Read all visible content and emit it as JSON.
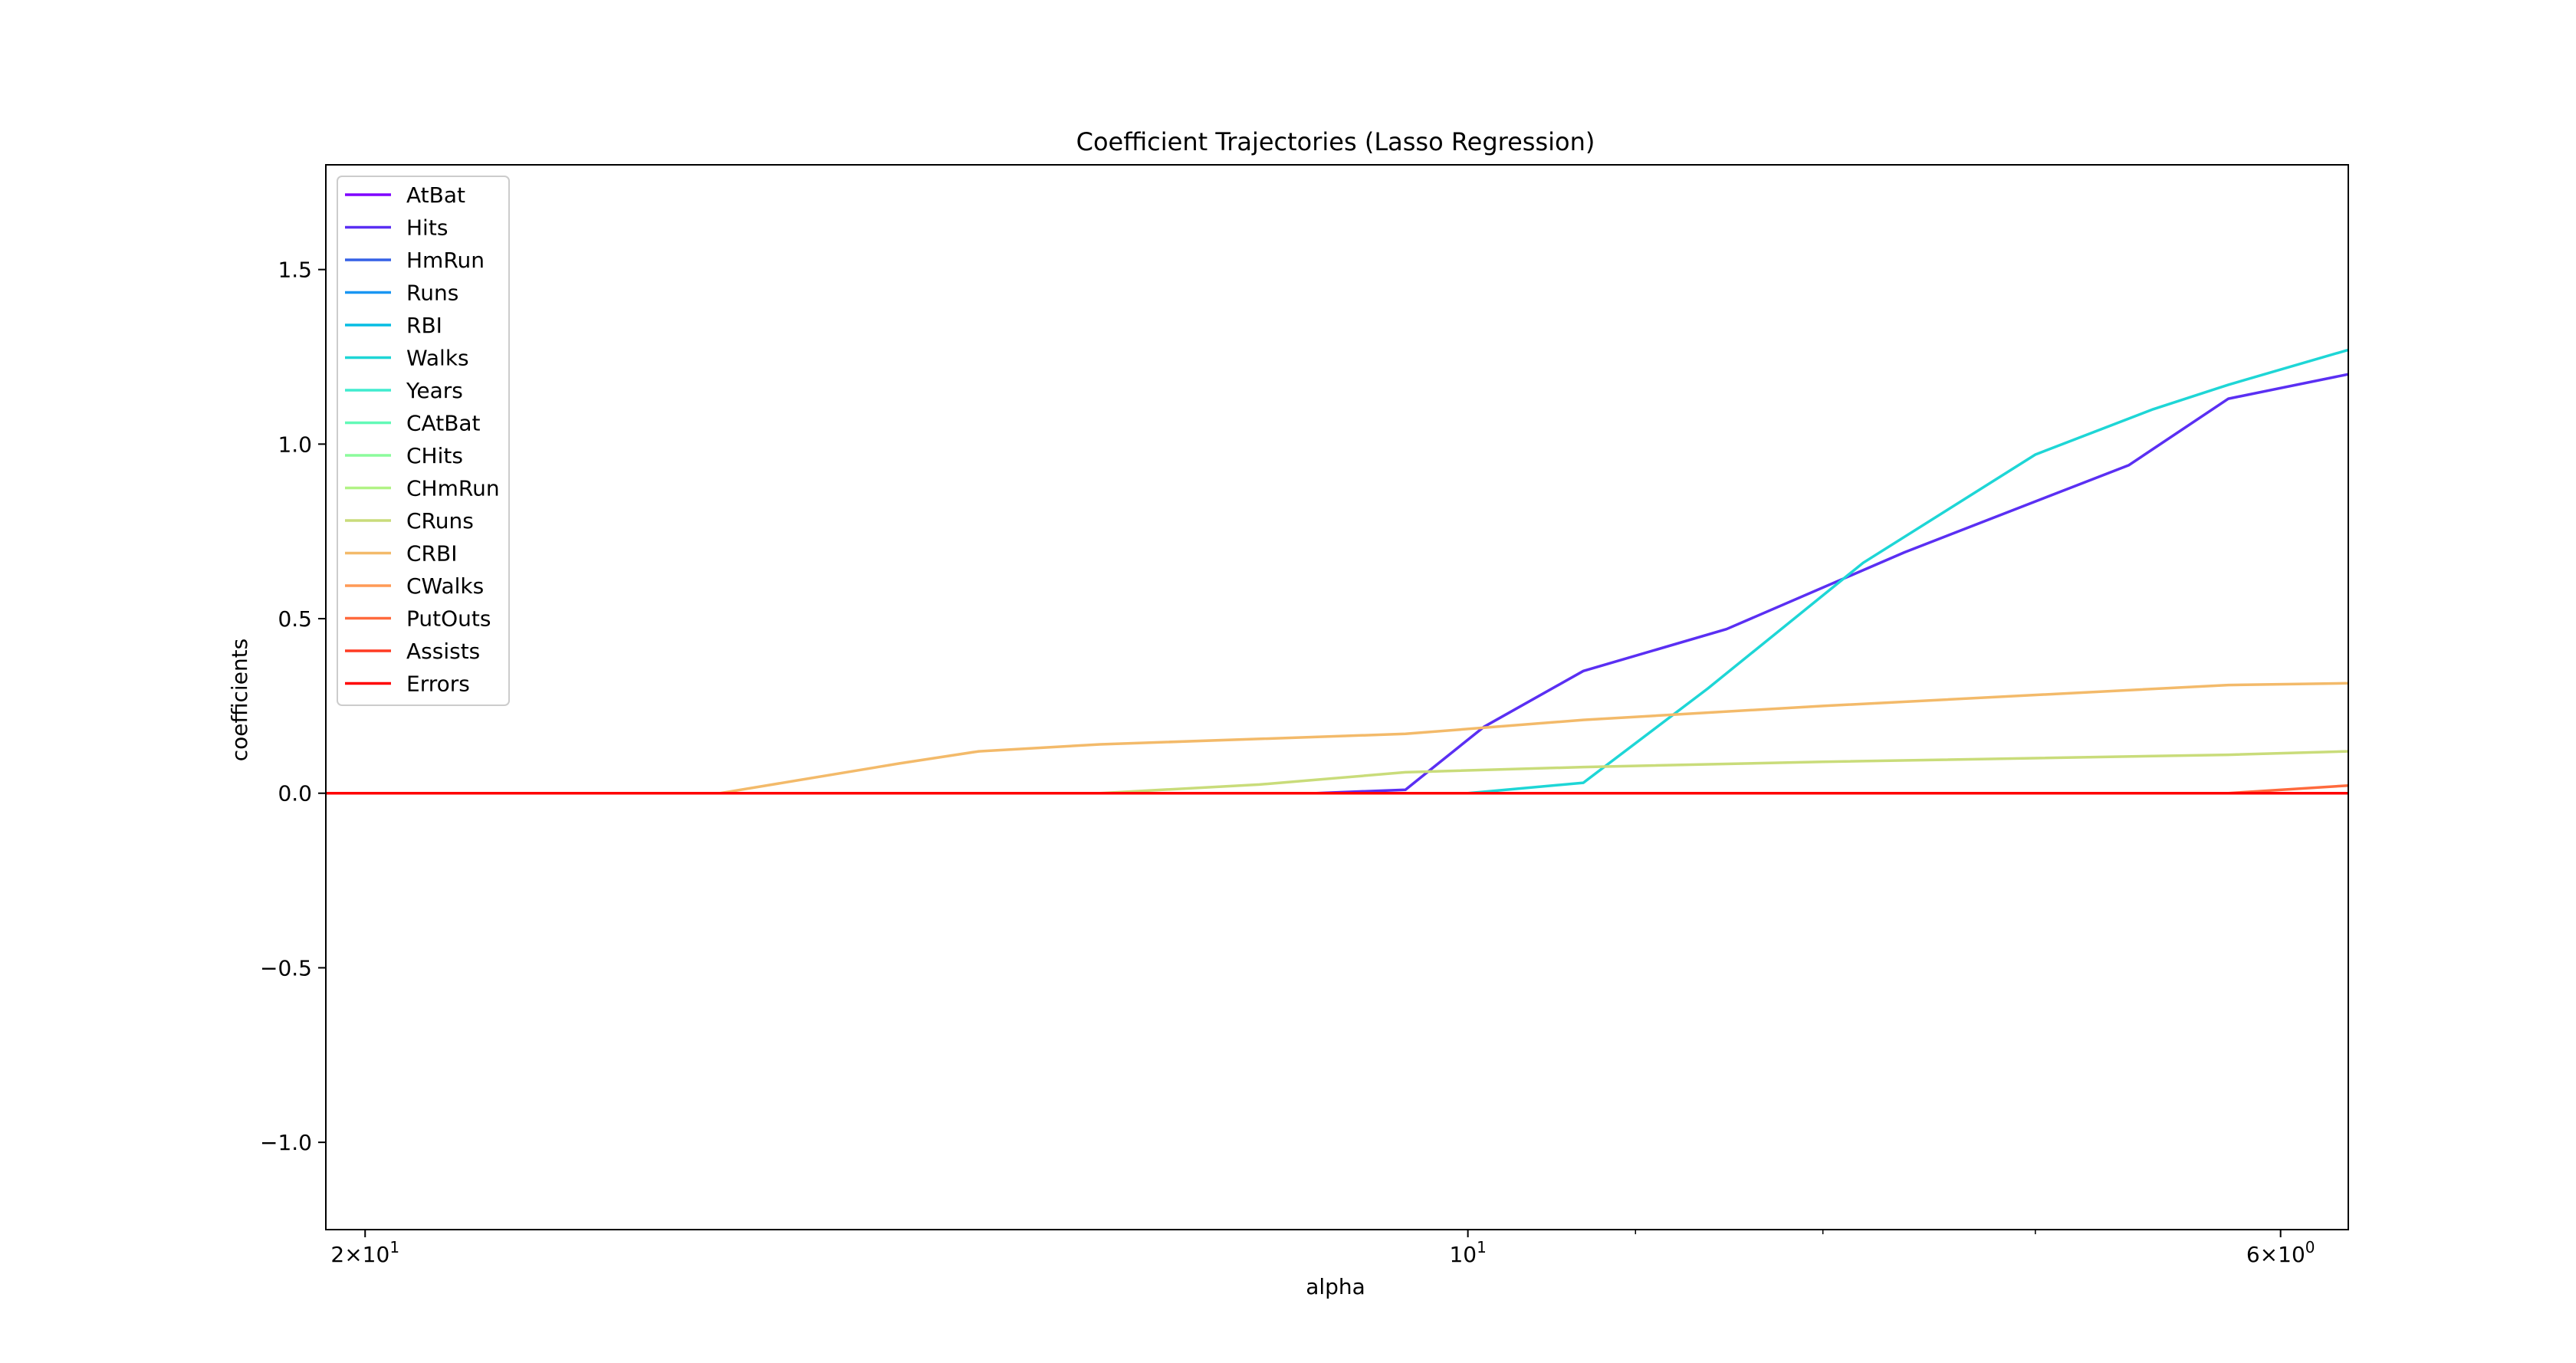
{
  "chart_data": {
    "type": "line",
    "title": "Coefficient Trajectories (Lasso Regression)",
    "xlabel": "alpha",
    "ylabel": "coefficients",
    "x_scale": "log",
    "x_reversed": true,
    "xlim": [
      20.5,
      5.75
    ],
    "ylim": [
      -1.25,
      1.8
    ],
    "grid": false,
    "legend_position": "upper-left",
    "x_ticks": [
      {
        "value": 20,
        "label_base": "2×10",
        "label_exp": "1"
      },
      {
        "value": 10,
        "label_base": "10",
        "label_exp": "1"
      },
      {
        "value": 6,
        "label_base": "6×10",
        "label_exp": "0"
      }
    ],
    "x_minor_ticks": [
      9,
      8,
      7
    ],
    "y_ticks": [
      {
        "value": -1.0,
        "label": "−1.0"
      },
      {
        "value": -0.5,
        "label": "−0.5"
      },
      {
        "value": 0.0,
        "label": "0.0"
      },
      {
        "value": 0.5,
        "label": "0.5"
      },
      {
        "value": 1.0,
        "label": "1.0"
      },
      {
        "value": 1.5,
        "label": "1.5"
      }
    ],
    "series": [
      {
        "name": "AtBat",
        "color": "#7f00ff",
        "x": [
          20.5,
          5.75
        ],
        "y": [
          0,
          0
        ]
      },
      {
        "name": "Hits",
        "color": "#5a2ff3",
        "x": [
          20.5,
          13.0,
          11.0,
          10.4,
          9.9,
          9.3,
          8.5,
          7.6,
          6.6,
          6.2,
          5.75
        ],
        "y": [
          0,
          0,
          0,
          0.01,
          0.19,
          0.35,
          0.47,
          0.69,
          0.94,
          1.13,
          1.2
        ]
      },
      {
        "name": "HmRun",
        "color": "#3561e6",
        "x": [
          20.5,
          5.75
        ],
        "y": [
          0,
          0
        ]
      },
      {
        "name": "Runs",
        "color": "#1996f3",
        "x": [
          20.5,
          5.75
        ],
        "y": [
          0,
          0
        ]
      },
      {
        "name": "RBI",
        "color": "#06bde3",
        "x": [
          20.5,
          5.75
        ],
        "y": [
          0,
          0
        ]
      },
      {
        "name": "Walks",
        "color": "#1ed6d6",
        "x": [
          20.5,
          10.0,
          9.3,
          8.6,
          7.8,
          7.0,
          6.5,
          6.2,
          5.75
        ],
        "y": [
          0,
          0,
          0.03,
          0.3,
          0.66,
          0.97,
          1.1,
          1.17,
          1.27
        ]
      },
      {
        "name": "Years",
        "color": "#40eccf",
        "x": [
          20.5,
          5.75
        ],
        "y": [
          0,
          0
        ]
      },
      {
        "name": "CAtBat",
        "color": "#63f9b7",
        "x": [
          20.5,
          5.75
        ],
        "y": [
          0,
          0
        ]
      },
      {
        "name": "CHits",
        "color": "#8bfb9c",
        "x": [
          20.5,
          5.75
        ],
        "y": [
          0,
          0
        ]
      },
      {
        "name": "CHmRun",
        "color": "#b1f385",
        "x": [
          20.5,
          5.75
        ],
        "y": [
          0,
          0
        ]
      },
      {
        "name": "CRuns",
        "color": "#c9dc7a",
        "x": [
          20.5,
          12.6,
          11.4,
          10.4,
          9.3,
          8.0,
          6.2,
          5.75
        ],
        "y": [
          0,
          0,
          0.025,
          0.06,
          0.075,
          0.09,
          0.11,
          0.12
        ]
      },
      {
        "name": "CRBI",
        "color": "#f3ba6a",
        "x": [
          20.5,
          16.0,
          14.3,
          13.6,
          12.6,
          10.4,
          9.3,
          8.0,
          6.2,
          5.75
        ],
        "y": [
          0,
          0,
          0.085,
          0.12,
          0.14,
          0.17,
          0.21,
          0.25,
          0.31,
          0.315
        ]
      },
      {
        "name": "CWalks",
        "color": "#ff9a56",
        "x": [
          20.5,
          5.75
        ],
        "y": [
          0,
          0
        ]
      },
      {
        "name": "PutOuts",
        "color": "#ff6a3d",
        "x": [
          20.5,
          6.2,
          5.75
        ],
        "y": [
          0,
          0,
          0.022
        ]
      },
      {
        "name": "Assists",
        "color": "#ff3a22",
        "x": [
          20.5,
          5.75
        ],
        "y": [
          0,
          0
        ]
      },
      {
        "name": "Errors",
        "color": "#ff0000",
        "x": [
          20.5,
          5.75
        ],
        "y": [
          0,
          0
        ]
      }
    ]
  }
}
